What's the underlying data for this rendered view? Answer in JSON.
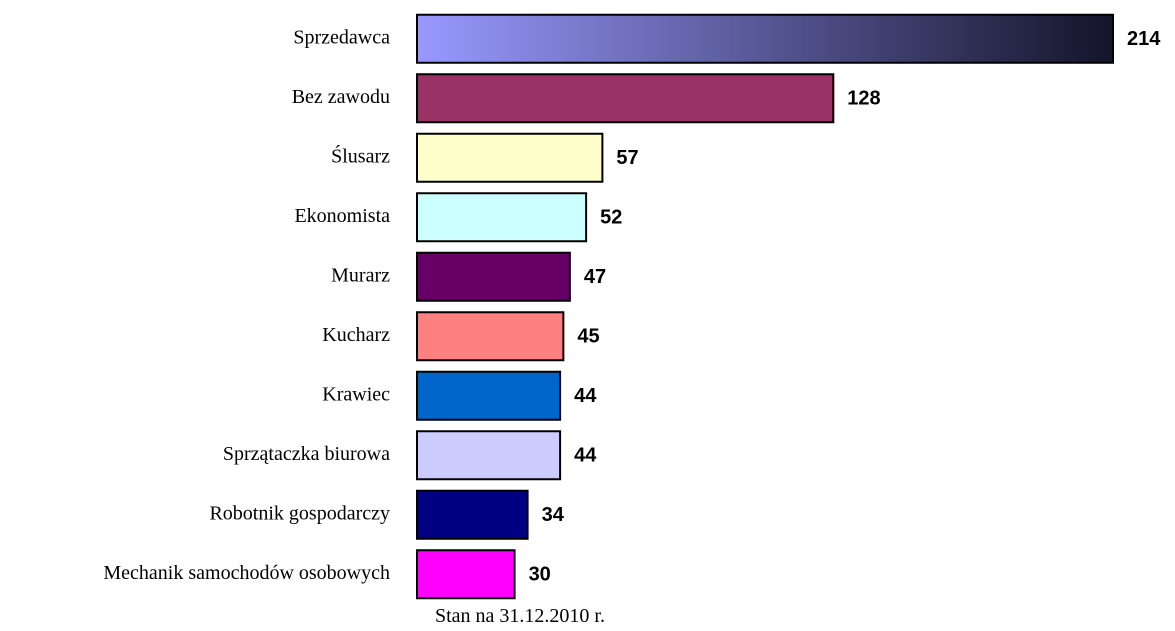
{
  "chart_data": {
    "type": "bar",
    "orientation": "horizontal",
    "categories": [
      "Sprzedawca",
      "Bez zawodu",
      "Ślusarz",
      "Ekonomista",
      "Murarz",
      "Kucharz",
      "Krawiec",
      "Sprzątaczka biurowa",
      "Robotnik gospodarczy",
      "Mechanik samochodów osobowych"
    ],
    "values": [
      214,
      128,
      57,
      52,
      47,
      45,
      44,
      44,
      34,
      30
    ],
    "colors": [
      "#9999ff",
      "#993366",
      "#ffffcc",
      "#ccffff",
      "#660066",
      "#ff8080",
      "#0066cc",
      "#ccccff",
      "#000080",
      "#ff00ff"
    ],
    "gradient_to": "#14142a",
    "xlim": [
      0,
      214
    ],
    "note": "Stan na 31.12.2010 r."
  }
}
